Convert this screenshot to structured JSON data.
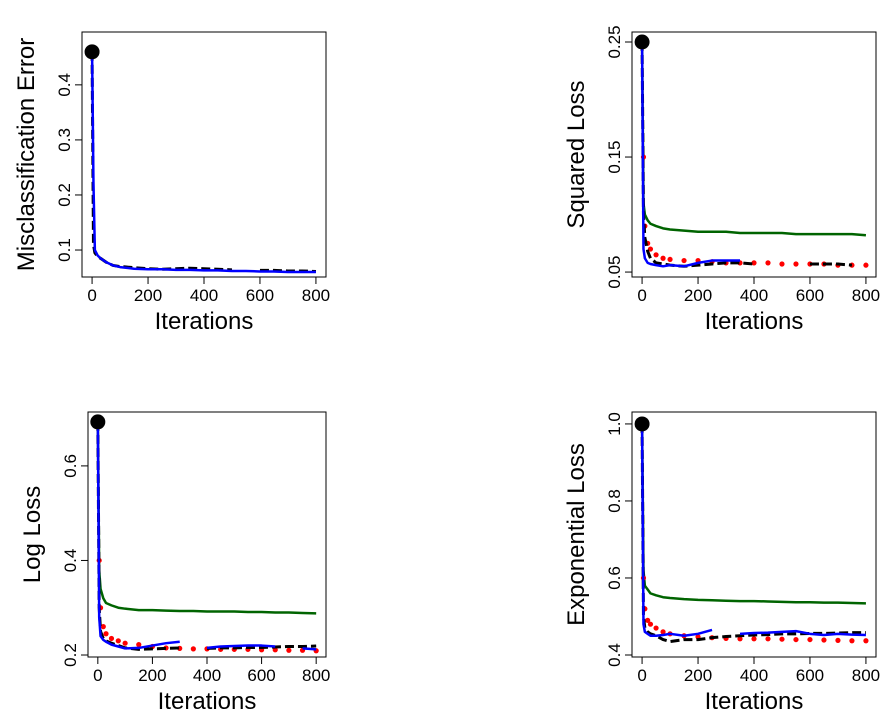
{
  "chart_data": [
    {
      "type": "line",
      "ylabel": "Misclassification Error",
      "xlabel": "Iterations",
      "xlim": [
        -36,
        836
      ],
      "ylim": [
        0.051,
        0.496
      ],
      "xticks": [
        0,
        200,
        400,
        600,
        800
      ],
      "yticks": [
        0.1,
        0.2,
        0.3,
        0.4
      ],
      "x": [
        0,
        5,
        10,
        20,
        30,
        50,
        75,
        100,
        150,
        200,
        250,
        300,
        350,
        400,
        450,
        500,
        550,
        600,
        650,
        700,
        750,
        800
      ],
      "series": [
        {
          "color": "#000000",
          "style": "dashed",
          "values": [
            0.46,
            0.11,
            0.095,
            0.088,
            0.085,
            0.078,
            0.072,
            0.07,
            0.068,
            0.066,
            0.065,
            0.066,
            0.067,
            0.066,
            0.065,
            0.064,
            null,
            0.063,
            0.063,
            0.062,
            0.062,
            0.061
          ]
        },
        {
          "color": "#0000ff",
          "style": "solid",
          "values": [
            0.46,
            0.22,
            0.1,
            0.09,
            0.085,
            0.078,
            0.072,
            0.069,
            0.066,
            0.065,
            0.065,
            0.064,
            0.064,
            0.063,
            0.063,
            0.062,
            0.062,
            0.061,
            0.061,
            0.06,
            0.06,
            0.06
          ]
        }
      ]
    },
    {
      "type": "line",
      "ylabel": "Squared Loss",
      "xlabel": "Iterations",
      "xlim": [
        -36,
        836
      ],
      "ylim": [
        0.0457,
        0.2587
      ],
      "xticks": [
        0,
        200,
        400,
        600,
        800
      ],
      "yticks": [
        0.05,
        0.15,
        0.25
      ],
      "x": [
        0,
        5,
        10,
        20,
        30,
        50,
        75,
        100,
        150,
        200,
        250,
        300,
        350,
        400,
        450,
        500,
        550,
        600,
        650,
        700,
        750,
        800
      ],
      "series": [
        {
          "color": "#006400",
          "style": "solid",
          "values": [
            0.25,
            0.11,
            0.1,
            0.095,
            0.092,
            0.09,
            0.088,
            0.087,
            0.086,
            0.085,
            0.085,
            0.085,
            0.084,
            0.084,
            0.084,
            0.084,
            0.083,
            0.083,
            0.083,
            0.083,
            0.083,
            0.082
          ]
        },
        {
          "color": "#ff0000",
          "style": "dotted",
          "values": [
            0.25,
            0.15,
            0.09,
            0.075,
            0.07,
            0.065,
            0.062,
            0.061,
            0.06,
            0.06,
            0.059,
            0.058,
            0.058,
            0.058,
            0.058,
            0.057,
            0.057,
            0.057,
            0.057,
            0.056,
            0.056,
            0.056
          ]
        },
        {
          "color": "#000000",
          "style": "dashed",
          "values": [
            0.25,
            0.1,
            0.08,
            0.068,
            0.062,
            0.058,
            0.057,
            0.056,
            0.055,
            0.056,
            0.057,
            0.058,
            0.058,
            0.057,
            null,
            null,
            null,
            0.057,
            0.057,
            0.057,
            0.056,
            null
          ]
        },
        {
          "color": "#0000ff",
          "style": "solid",
          "values": [
            0.25,
            0.07,
            0.062,
            0.058,
            0.057,
            0.056,
            0.055,
            0.056,
            0.055,
            0.058,
            0.06,
            0.06,
            0.06,
            null,
            null,
            null,
            null,
            null,
            null,
            null,
            null,
            null
          ]
        }
      ]
    },
    {
      "type": "line",
      "ylabel": "Log Loss",
      "xlabel": "Iterations",
      "xlim": [
        -36,
        836
      ],
      "ylim": [
        0.1958,
        0.714
      ],
      "xticks": [
        0,
        200,
        400,
        600,
        800
      ],
      "yticks": [
        0.2,
        0.4,
        0.6
      ],
      "x": [
        0,
        5,
        10,
        20,
        30,
        50,
        75,
        100,
        150,
        200,
        250,
        300,
        350,
        400,
        450,
        500,
        550,
        600,
        650,
        700,
        750,
        800
      ],
      "series": [
        {
          "color": "#006400",
          "style": "solid",
          "values": [
            0.693,
            0.38,
            0.34,
            0.32,
            0.31,
            0.305,
            0.3,
            0.298,
            0.295,
            0.295,
            0.294,
            0.293,
            0.293,
            0.292,
            0.292,
            0.292,
            0.291,
            0.291,
            0.29,
            0.29,
            0.289,
            0.288
          ]
        },
        {
          "color": "#ff0000",
          "style": "dotted",
          "values": [
            0.693,
            0.4,
            0.3,
            0.26,
            0.245,
            0.235,
            0.23,
            0.225,
            0.222,
            0.218,
            0.215,
            0.214,
            0.213,
            0.213,
            0.212,
            0.212,
            0.212,
            0.211,
            0.211,
            0.21,
            0.21,
            0.209
          ]
        },
        {
          "color": "#000000",
          "style": "dashed",
          "values": [
            0.693,
            0.3,
            0.25,
            0.235,
            0.23,
            0.225,
            0.22,
            0.215,
            0.212,
            0.213,
            0.214,
            0.215,
            null,
            0.214,
            0.215,
            0.215,
            0.216,
            0.216,
            0.217,
            0.218,
            0.218,
            0.219
          ]
        },
        {
          "color": "#0000ff",
          "style": "solid",
          "values": [
            0.693,
            0.28,
            0.24,
            0.232,
            0.228,
            0.222,
            0.218,
            0.214,
            0.215,
            0.22,
            0.225,
            0.228,
            null,
            0.215,
            0.218,
            0.219,
            0.22,
            0.22,
            0.218,
            null,
            0.214,
            0.212
          ]
        }
      ]
    },
    {
      "type": "line",
      "ylabel": "Exponential Loss",
      "xlabel": "Iterations",
      "xlim": [
        -36,
        836
      ],
      "ylim": [
        0.3948,
        1.031
      ],
      "xticks": [
        0,
        200,
        400,
        600,
        800
      ],
      "yticks": [
        0.4,
        0.6,
        0.8,
        {
          "value": 1,
          "label": "1.0"
        }
      ],
      "x": [
        0,
        5,
        10,
        20,
        30,
        50,
        75,
        100,
        150,
        200,
        250,
        300,
        350,
        400,
        450,
        500,
        550,
        600,
        650,
        700,
        750,
        800
      ],
      "series": [
        {
          "color": "#006400",
          "style": "solid",
          "values": [
            1,
            0.62,
            0.58,
            0.57,
            0.56,
            0.555,
            0.55,
            0.548,
            0.545,
            0.543,
            0.542,
            0.541,
            0.54,
            0.54,
            0.539,
            0.538,
            0.537,
            0.537,
            0.536,
            0.536,
            0.535,
            0.534
          ]
        },
        {
          "color": "#ff0000",
          "style": "dotted",
          "values": [
            1,
            0.6,
            0.52,
            0.49,
            0.48,
            0.47,
            0.46,
            0.455,
            0.45,
            0.447,
            0.445,
            0.443,
            0.442,
            0.442,
            0.442,
            0.441,
            0.44,
            0.44,
            0.439,
            0.438,
            0.437,
            0.437
          ]
        },
        {
          "color": "#000000",
          "style": "dashed",
          "values": [
            1,
            0.5,
            0.47,
            0.46,
            0.455,
            0.45,
            0.44,
            0.435,
            0.44,
            0.44,
            0.445,
            0.448,
            0.45,
            0.452,
            0.453,
            0.455,
            0.455,
            0.456,
            0.456,
            0.457,
            0.458,
            0.458
          ]
        },
        {
          "color": "#0000ff",
          "style": "solid",
          "values": [
            1,
            0.48,
            0.46,
            0.455,
            0.45,
            0.45,
            0.452,
            0.455,
            0.45,
            0.455,
            0.465,
            null,
            0.455,
            0.457,
            0.458,
            0.46,
            0.462,
            0.455,
            0.452,
            0.455,
            0.453,
            0.452
          ]
        }
      ]
    }
  ]
}
